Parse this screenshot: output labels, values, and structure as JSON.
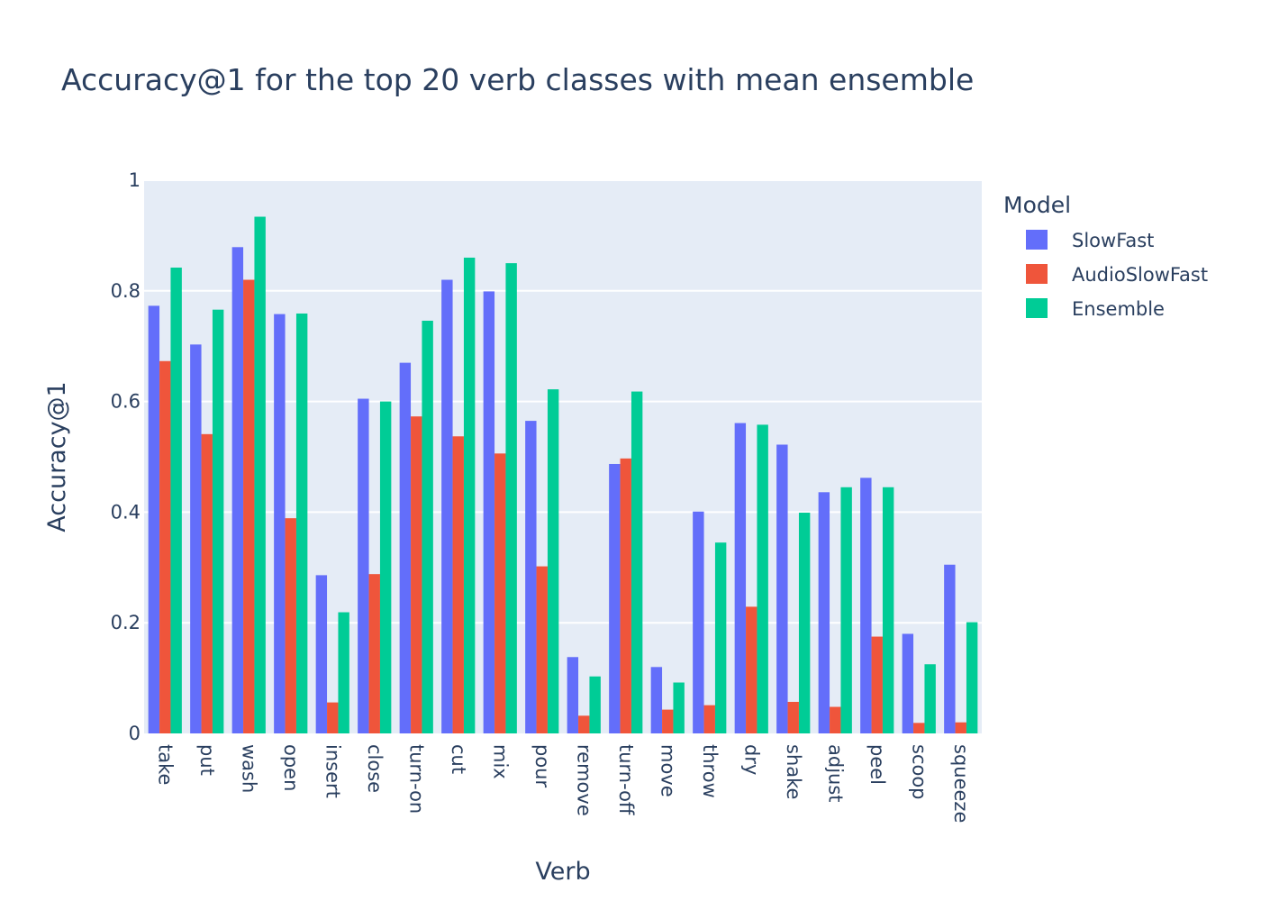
{
  "chart_data": {
    "type": "bar",
    "title": "Accuracy@1 for the top 20 verb classes with mean ensemble",
    "xlabel": "Verb",
    "ylabel": "Accuracy@1",
    "ylim": [
      0,
      1
    ],
    "yticks": [
      "0",
      "0.2",
      "0.4",
      "0.6",
      "0.8",
      "1"
    ],
    "grid": true,
    "legend_title": "Model",
    "legend_position": "right",
    "categories": [
      "take",
      "put",
      "wash",
      "open",
      "insert",
      "close",
      "turn-on",
      "cut",
      "mix",
      "pour",
      "remove",
      "turn-off",
      "move",
      "throw",
      "dry",
      "shake",
      "adjust",
      "peel",
      "scoop",
      "squeeze"
    ],
    "series": [
      {
        "name": "SlowFast",
        "color": "#636efa",
        "values": [
          0.773,
          0.703,
          0.879,
          0.758,
          0.286,
          0.605,
          0.67,
          0.82,
          0.799,
          0.565,
          0.138,
          0.487,
          0.12,
          0.401,
          0.561,
          0.522,
          0.436,
          0.462,
          0.18,
          0.305
        ]
      },
      {
        "name": "AudioSlowFast",
        "color": "#ef553b",
        "values": [
          0.673,
          0.541,
          0.82,
          0.389,
          0.056,
          0.288,
          0.573,
          0.537,
          0.506,
          0.302,
          0.032,
          0.497,
          0.043,
          0.051,
          0.229,
          0.057,
          0.048,
          0.175,
          0.019,
          0.02
        ]
      },
      {
        "name": "Ensemble",
        "color": "#00cc96",
        "values": [
          0.842,
          0.766,
          0.934,
          0.759,
          0.219,
          0.6,
          0.746,
          0.86,
          0.85,
          0.622,
          0.103,
          0.618,
          0.092,
          0.345,
          0.558,
          0.399,
          0.445,
          0.445,
          0.125,
          0.201
        ]
      }
    ]
  }
}
